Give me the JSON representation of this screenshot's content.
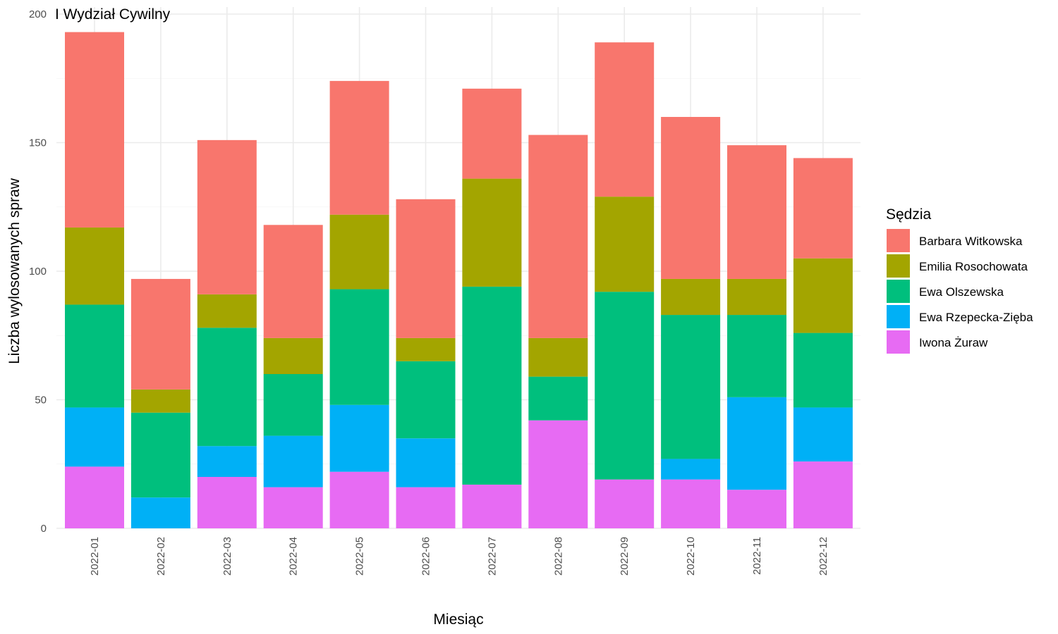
{
  "chart_data": {
    "type": "bar",
    "stacked": true,
    "title": "I Wydział Cywilny",
    "xlabel": "Miesiąc",
    "ylabel": "Liczba wylosowanych spraw",
    "ylim": [
      0,
      200
    ],
    "yticks": [
      0,
      50,
      100,
      150,
      200
    ],
    "grid": true,
    "legend": {
      "title": "Sędzia",
      "position": "right"
    },
    "categories": [
      "2022-01",
      "2022-02",
      "2022-03",
      "2022-04",
      "2022-05",
      "2022-06",
      "2022-07",
      "2022-08",
      "2022-09",
      "2022-10",
      "2022-11",
      "2022-12"
    ],
    "series": [
      {
        "name": "Iwona Żuraw",
        "color": "#E76BF3",
        "values": [
          24,
          0,
          20,
          16,
          22,
          16,
          17,
          42,
          19,
          19,
          15,
          26
        ]
      },
      {
        "name": "Ewa Rzepecka-Zięba",
        "color": "#00B0F6",
        "values": [
          23,
          12,
          12,
          20,
          26,
          19,
          0,
          0,
          0,
          8,
          36,
          21
        ]
      },
      {
        "name": "Ewa Olszewska",
        "color": "#00BF7D",
        "values": [
          40,
          33,
          46,
          24,
          45,
          30,
          77,
          17,
          73,
          56,
          32,
          29
        ]
      },
      {
        "name": "Emilia Rosochowata",
        "color": "#A3A500",
        "values": [
          30,
          9,
          13,
          14,
          29,
          9,
          42,
          15,
          37,
          14,
          14,
          29
        ]
      },
      {
        "name": "Barbara Witkowska",
        "color": "#F8766D",
        "values": [
          76,
          43,
          60,
          44,
          52,
          54,
          35,
          79,
          60,
          63,
          52,
          39
        ]
      }
    ],
    "legend_order": [
      "Barbara Witkowska",
      "Emilia Rosochowata",
      "Ewa Olszewska",
      "Ewa Rzepecka-Zięba",
      "Iwona Żuraw"
    ]
  }
}
